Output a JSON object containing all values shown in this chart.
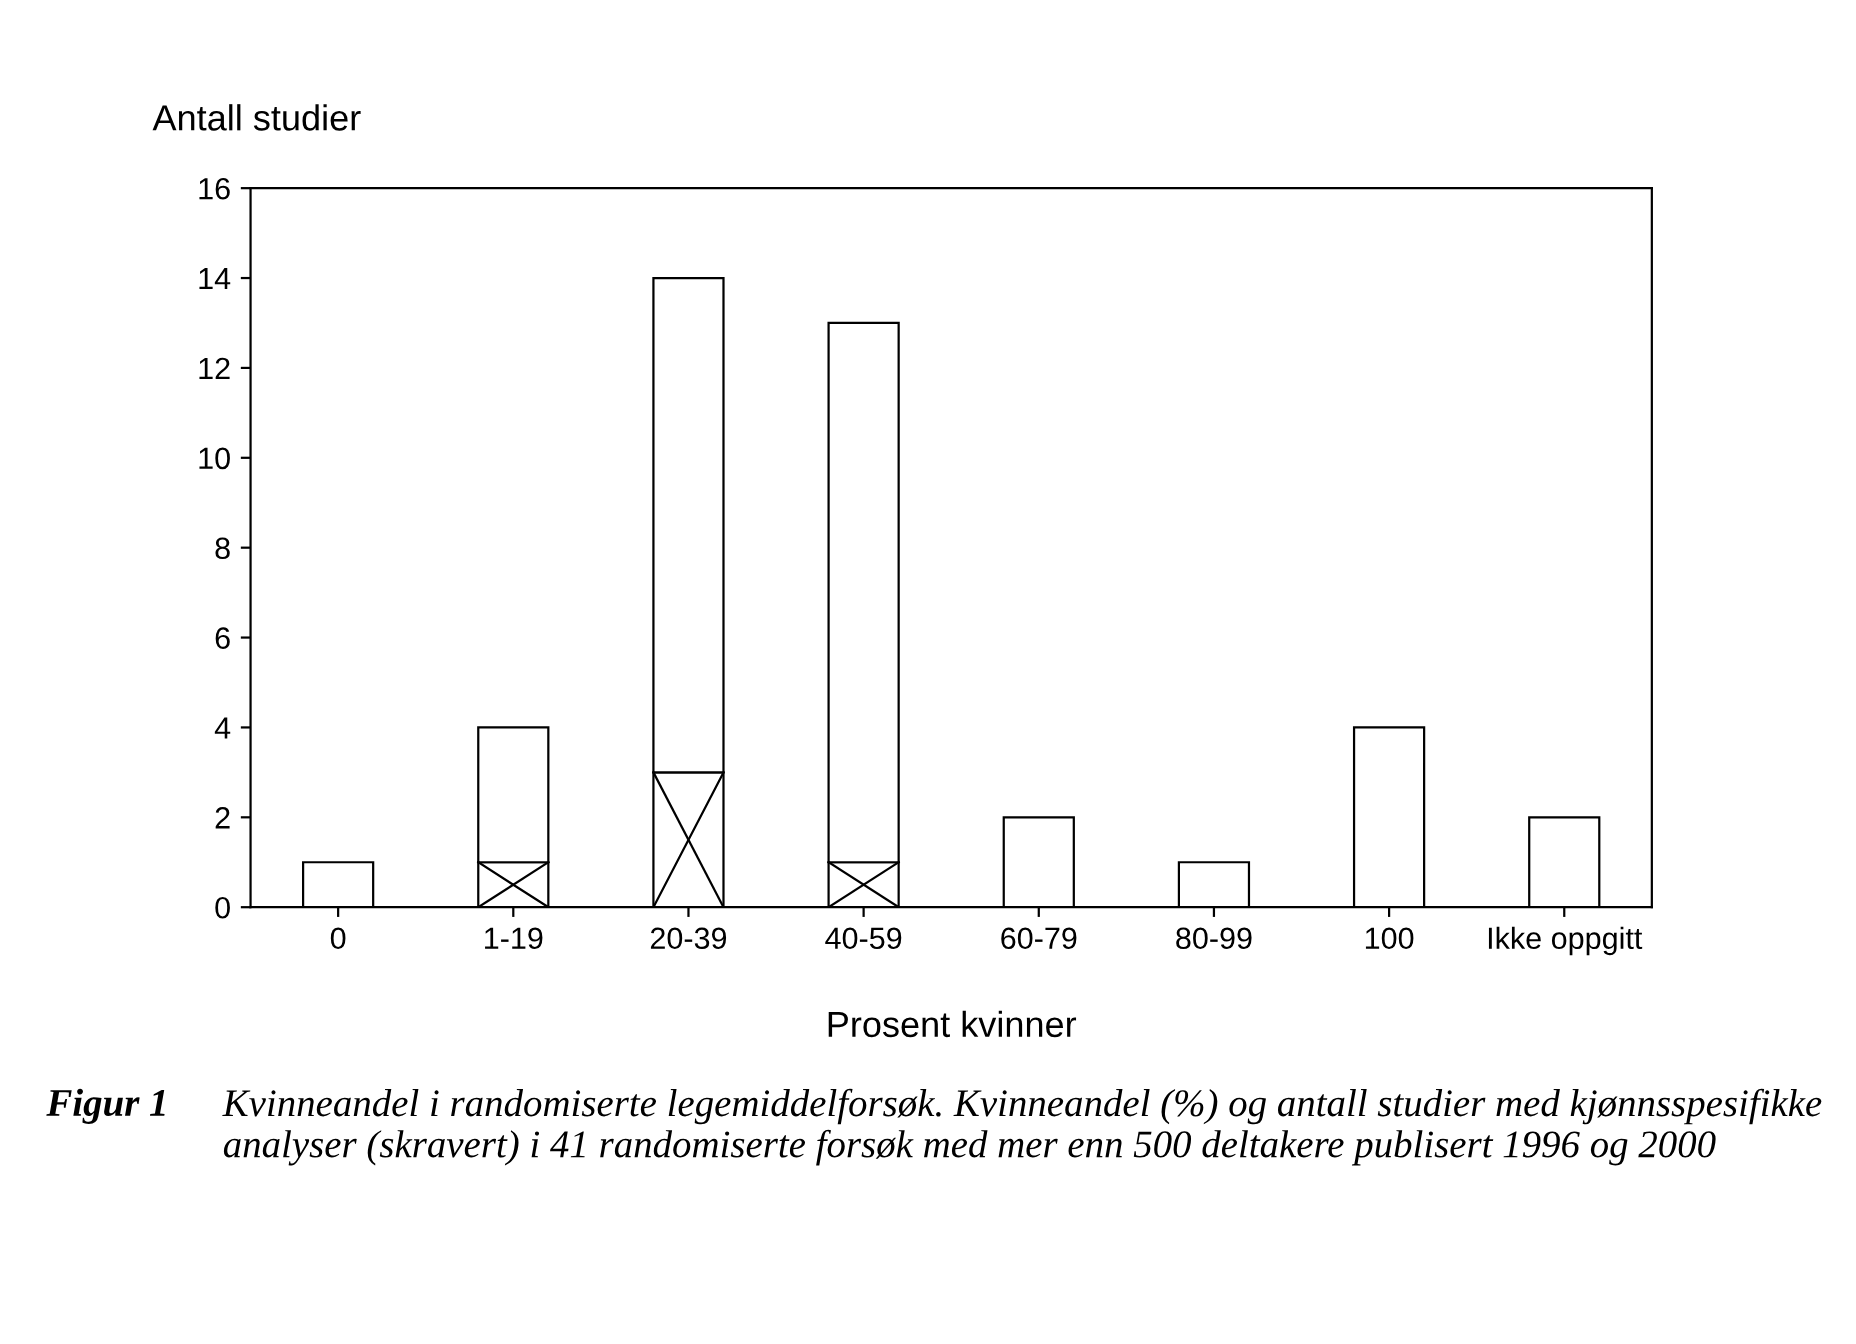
{
  "chart_data": {
    "type": "bar",
    "stacked": true,
    "categories": [
      "0",
      "1-19",
      "20-39",
      "40-59",
      "60-79",
      "80-99",
      "100",
      "Ikke oppgitt"
    ],
    "series": [
      {
        "color": "#ffffff",
        "values": [
          0,
          1,
          3,
          1,
          0,
          0,
          0,
          0
        ]
      },
      {
        "color": "#ffffff",
        "values": [
          1,
          3,
          11,
          12,
          2,
          1,
          4,
          2
        ]
      }
    ],
    "ylabel": "Antall studier",
    "xlabel": "Prosent kvinner",
    "ylim": [
      0,
      16
    ],
    "yticks": [
      0,
      2,
      4,
      6,
      8,
      10,
      12,
      14,
      16
    ],
    "grid": false,
    "legend": false,
    "annotations": [
      "Figur 1",
      "Kvinneandel i randomiserte legemiddelforsøk. Kvinneandel (%) og antall studier med kjønnsspesifikke analyser (skravert) i 41 randomiserte forsøk med mer enn 500 deltakere publisert 1996 og 2000"
    ]
  }
}
